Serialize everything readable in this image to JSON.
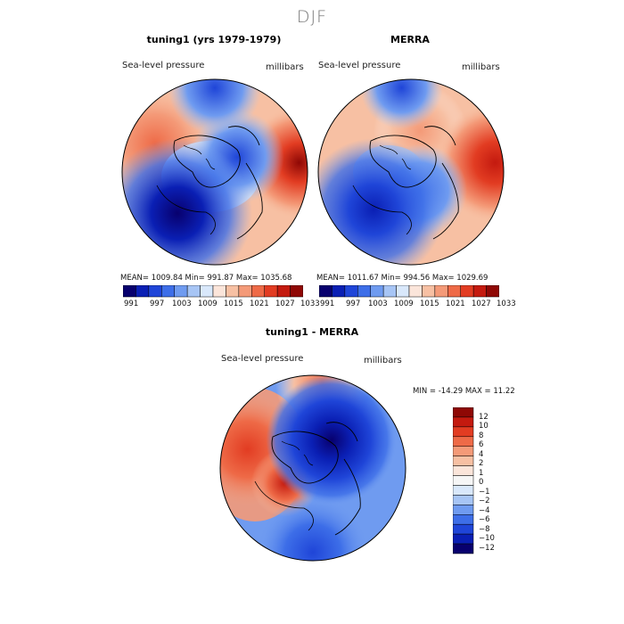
{
  "figure": {
    "title": "DJF",
    "variable": "Sea-level pressure",
    "units": "millibars"
  },
  "colors": {
    "scale": [
      "#08006e",
      "#0a1fb4",
      "#1f45d8",
      "#3d6ee8",
      "#6f9bf0",
      "#a7c5f5",
      "#d9e8fb",
      "#fbe5da",
      "#f7c0a3",
      "#f49a78",
      "#ee6a47",
      "#e23c22",
      "#c41a0f",
      "#8f0805"
    ]
  },
  "chart_data": [
    {
      "type": "heatmap",
      "projection": "north-polar-stereographic",
      "title": "tuning1 (yrs 1979-1979)",
      "variable": "Sea-level pressure",
      "units": "millibars",
      "stats": {
        "mean": 1009.84,
        "min": 991.87,
        "max": 1035.68
      },
      "stats_text": "MEAN= 1009.84   Min= 991.87   Max= 1035.68",
      "colorbar_ticks": [
        "991",
        "997",
        "1003",
        "1009",
        "1015",
        "1021",
        "1027",
        "1033"
      ]
    },
    {
      "type": "heatmap",
      "projection": "north-polar-stereographic",
      "title": "MERRA",
      "variable": "Sea-level pressure",
      "units": "millibars",
      "stats": {
        "mean": 1011.67,
        "min": 994.56,
        "max": 1029.69
      },
      "stats_text": "MEAN= 1011.67   Min= 994.56   Max= 1029.69",
      "colorbar_ticks": [
        "991",
        "997",
        "1003",
        "1009",
        "1015",
        "1021",
        "1027",
        "1033"
      ]
    },
    {
      "type": "heatmap",
      "projection": "north-polar-stereographic",
      "title": "tuning1 - MERRA",
      "variable": "Sea-level pressure",
      "units": "millibars",
      "stats": {
        "min": -14.29,
        "max": 11.22
      },
      "stats_text": "MIN = -14.29  MAX =  11.22",
      "colorbar_ticks": [
        "12",
        "10",
        "8",
        "6",
        "4",
        "2",
        "1",
        "0",
        "−1",
        "−2",
        "−4",
        "−6",
        "−8",
        "−10",
        "−12"
      ]
    }
  ]
}
